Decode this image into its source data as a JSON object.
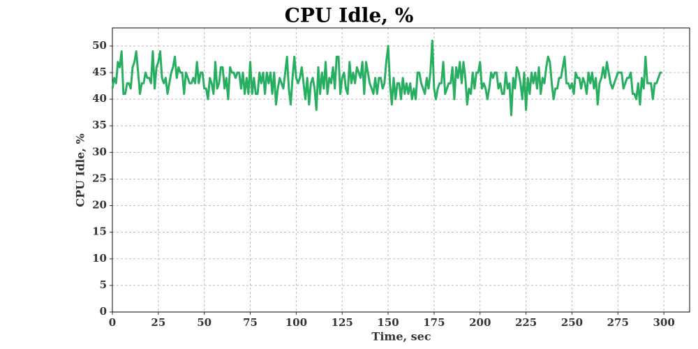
{
  "chart_data": {
    "type": "line",
    "title": "CPU Idle, %",
    "xlabel": "Time, sec",
    "ylabel": "CPU Idle, %",
    "x": [
      0,
      1,
      2,
      3,
      4,
      5,
      6,
      7,
      8,
      9,
      10,
      11,
      12,
      13,
      14,
      15,
      16,
      17,
      18,
      19,
      20,
      21,
      22,
      23,
      24,
      25,
      26,
      27,
      28,
      29,
      30,
      31,
      32,
      33,
      34,
      35,
      36,
      37,
      38,
      39,
      40,
      41,
      42,
      43,
      44,
      45,
      46,
      47,
      48,
      49,
      50,
      51,
      52,
      53,
      54,
      55,
      56,
      57,
      58,
      59,
      60,
      61,
      62,
      63,
      64,
      65,
      66,
      67,
      68,
      69,
      70,
      71,
      72,
      73,
      74,
      75,
      76,
      77,
      78,
      79,
      80,
      81,
      82,
      83,
      84,
      85,
      86,
      87,
      88,
      89,
      90,
      91,
      92,
      93,
      94,
      95,
      96,
      97,
      98,
      99,
      100,
      101,
      102,
      103,
      104,
      105,
      106,
      107,
      108,
      109,
      110,
      111,
      112,
      113,
      114,
      115,
      116,
      117,
      118,
      119,
      120,
      121,
      122,
      123,
      124,
      125,
      126,
      127,
      128,
      129,
      130,
      131,
      132,
      133,
      134,
      135,
      136,
      137,
      138,
      139,
      140,
      141,
      142,
      143,
      144,
      145,
      146,
      147,
      148,
      149,
      150,
      151,
      152,
      153,
      154,
      155,
      156,
      157,
      158,
      159,
      160,
      161,
      162,
      163,
      164,
      165,
      166,
      167,
      168,
      169,
      170,
      171,
      172,
      173,
      174,
      175,
      176,
      177,
      178,
      179,
      180,
      181,
      182,
      183,
      184,
      185,
      186,
      187,
      188,
      189,
      190,
      191,
      192,
      193,
      194,
      195,
      196,
      197,
      198,
      199,
      200,
      201,
      202,
      203,
      204,
      205,
      206,
      207,
      208,
      209,
      210,
      211,
      212,
      213,
      214,
      215,
      216,
      217,
      218,
      219,
      220,
      221,
      222,
      223,
      224,
      225,
      226,
      227,
      228,
      229,
      230,
      231,
      232,
      233,
      234,
      235,
      236,
      237,
      238,
      239,
      240,
      241,
      242,
      243,
      244,
      245,
      246,
      247,
      248,
      249,
      250,
      251,
      252,
      253,
      254,
      255,
      256,
      257,
      258,
      259,
      260,
      261,
      262,
      263,
      264,
      265,
      266,
      267,
      268,
      269,
      270,
      271,
      272,
      273,
      274,
      275,
      276,
      277,
      278,
      279,
      280,
      281,
      282,
      283,
      284,
      285,
      286,
      287,
      288,
      289,
      290,
      291,
      292,
      293,
      294,
      295,
      296,
      297,
      298,
      299
    ],
    "series": [
      {
        "name": "CPU Idle",
        "color": "#27ae60",
        "values": [
          42,
          44,
          43,
          47,
          46,
          49,
          41,
          41,
          43,
          43,
          42,
          46,
          47,
          49,
          45,
          41,
          43,
          43,
          45,
          44,
          44,
          43,
          49,
          42,
          46,
          47,
          49,
          44,
          43,
          44,
          41,
          43,
          45,
          46,
          48,
          44,
          46,
          45,
          45,
          41,
          45,
          44,
          43,
          43,
          44,
          43,
          47,
          43,
          45,
          45,
          42,
          42,
          40,
          44,
          43,
          41,
          47,
          42,
          43,
          46,
          46,
          42,
          44,
          40,
          46,
          45,
          45,
          44,
          45,
          45,
          42,
          45,
          41,
          44,
          41,
          47,
          41,
          44,
          41,
          41,
          45,
          43,
          45,
          41,
          45,
          43,
          45,
          41,
          45,
          39,
          42,
          44,
          43,
          42,
          45,
          48,
          42,
          39,
          44,
          48,
          44,
          43,
          44,
          46,
          43,
          40,
          44,
          39,
          43,
          44,
          42,
          38,
          46,
          41,
          45,
          42,
          47,
          41,
          44,
          43,
          46,
          42,
          48,
          48,
          41,
          44,
          45,
          42,
          41,
          47,
          43,
          45,
          43,
          46,
          45,
          44,
          47,
          41,
          47,
          45,
          43,
          42,
          41,
          44,
          41,
          44,
          44,
          42,
          43,
          47,
          50,
          43,
          39,
          44,
          40,
          43,
          43,
          40,
          44,
          41,
          43,
          41,
          43,
          40,
          42,
          40,
          45,
          45,
          43,
          42,
          41,
          44,
          42,
          45,
          51,
          42,
          40,
          42,
          43,
          43,
          47,
          41,
          42,
          43,
          43,
          46,
          40,
          46,
          44,
          47,
          43,
          47,
          44,
          39,
          42,
          41,
          45,
          42,
          45,
          45,
          47,
          42,
          43,
          42,
          40,
          42,
          45,
          44,
          45,
          45,
          42,
          43,
          41,
          41,
          45,
          42,
          43,
          37,
          44,
          42,
          46,
          45,
          43,
          40,
          45,
          38,
          44,
          41,
          45,
          43,
          45,
          42,
          46,
          41,
          44,
          43,
          46,
          48,
          47,
          43,
          40,
          42,
          42,
          44,
          44,
          46,
          48,
          43,
          43,
          42,
          43,
          41,
          45,
          44,
          44,
          42,
          44,
          43,
          41,
          45,
          43,
          45,
          42,
          44,
          39,
          43,
          44,
          46,
          44,
          47,
          45,
          43,
          42,
          43,
          44,
          45,
          45,
          45,
          42,
          43,
          44,
          44,
          45,
          41,
          41,
          40,
          43,
          39,
          44,
          42,
          48,
          43,
          43,
          43,
          40,
          43,
          43,
          44,
          45,
          45
        ]
      }
    ],
    "xlim": [
      0,
      314
    ],
    "ylim": [
      0,
      53.4
    ],
    "xticks": [
      0,
      25,
      50,
      75,
      100,
      125,
      150,
      175,
      200,
      225,
      250,
      275,
      300
    ],
    "yticks": [
      0,
      5,
      10,
      15,
      20,
      25,
      30,
      35,
      40,
      45,
      50
    ],
    "grid": true
  }
}
